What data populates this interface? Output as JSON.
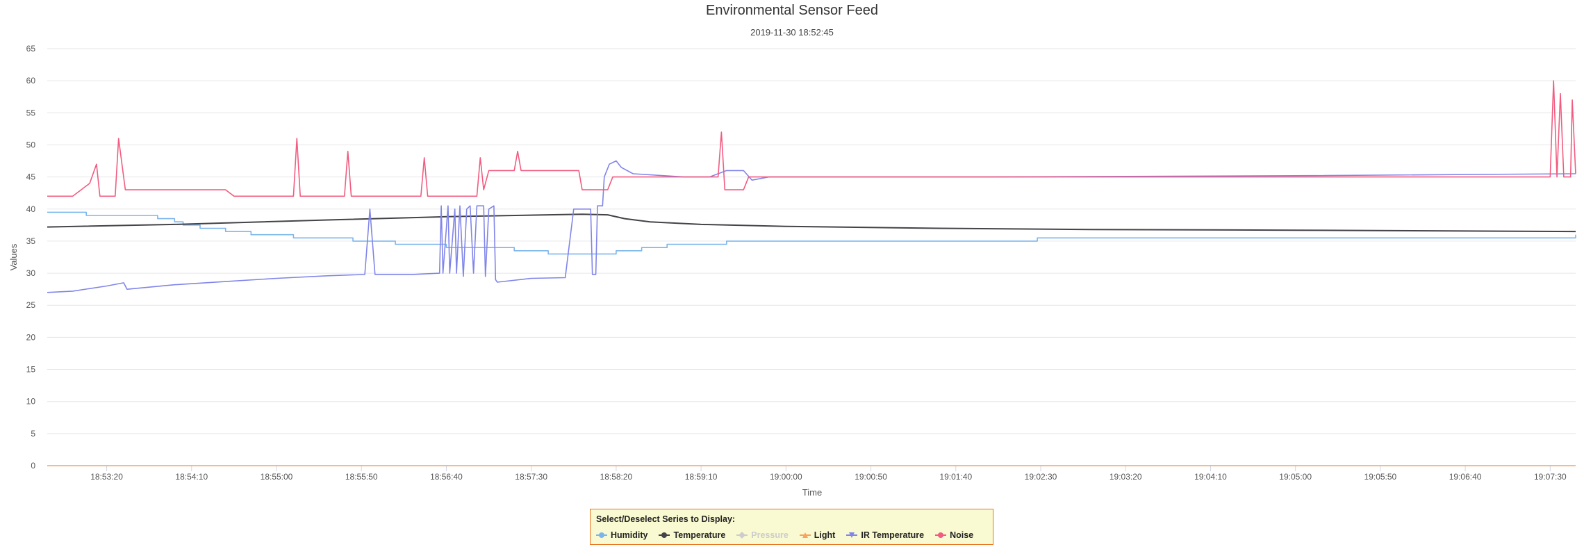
{
  "chart_data": {
    "type": "line",
    "title": "Environmental Sensor Feed",
    "subtitle": "2019-11-30 18:52:45",
    "xlabel": "Time",
    "ylabel": "Values",
    "ylim": [
      0,
      65
    ],
    "yticks": [
      0,
      5,
      10,
      15,
      20,
      25,
      30,
      35,
      40,
      45,
      50,
      55,
      60,
      65
    ],
    "xlim": [
      "18:52:45",
      "19:07:45"
    ],
    "xticks": [
      "18:53:20",
      "18:54:10",
      "18:55:00",
      "18:55:50",
      "18:56:40",
      "18:57:30",
      "18:58:20",
      "18:59:10",
      "19:00:00",
      "19:00:50",
      "19:01:40",
      "19:02:30",
      "19:03:20",
      "19:04:10",
      "19:05:00",
      "19:05:50",
      "19:06:40",
      "19:07:30"
    ],
    "grid": true,
    "legend_position": "bottom-center",
    "series": [
      {
        "name": "Humidity",
        "color": "#7cb5ec",
        "visible": true,
        "style": "step",
        "points": [
          [
            "18:52:45",
            39.5
          ],
          [
            "18:53:05",
            39.5
          ],
          [
            "18:53:08",
            39
          ],
          [
            "18:53:45",
            39
          ],
          [
            "18:53:50",
            38.5
          ],
          [
            "18:54:00",
            38
          ],
          [
            "18:54:05",
            37.5
          ],
          [
            "18:54:15",
            37
          ],
          [
            "18:54:30",
            36.5
          ],
          [
            "18:54:45",
            36
          ],
          [
            "18:55:10",
            35.5
          ],
          [
            "18:55:45",
            35
          ],
          [
            "18:56:10",
            34.5
          ],
          [
            "18:56:40",
            34
          ],
          [
            "18:57:20",
            33.5
          ],
          [
            "18:57:40",
            33
          ],
          [
            "18:58:20",
            33.5
          ],
          [
            "18:58:35",
            34
          ],
          [
            "18:58:50",
            34.5
          ],
          [
            "18:59:25",
            35
          ],
          [
            "19:02:25",
            35
          ],
          [
            "19:02:28",
            35.5
          ],
          [
            "19:07:40",
            35.5
          ],
          [
            "19:07:45",
            36
          ]
        ]
      },
      {
        "name": "Temperature",
        "color": "#434348",
        "visible": true,
        "style": "line",
        "points": [
          [
            "18:52:45",
            37.2
          ],
          [
            "18:54:00",
            37.6
          ],
          [
            "18:55:30",
            38.3
          ],
          [
            "18:56:40",
            38.8
          ],
          [
            "18:58:00",
            39.2
          ],
          [
            "18:58:15",
            39.1
          ],
          [
            "18:58:25",
            38.5
          ],
          [
            "18:58:40",
            38.0
          ],
          [
            "18:59:10",
            37.6
          ],
          [
            "19:00:00",
            37.3
          ],
          [
            "19:01:30",
            37.0
          ],
          [
            "19:03:00",
            36.8
          ],
          [
            "19:05:00",
            36.7
          ],
          [
            "19:06:30",
            36.6
          ],
          [
            "19:07:45",
            36.5
          ]
        ]
      },
      {
        "name": "Pressure",
        "color": "#90ed7d",
        "visible": false,
        "style": "line",
        "points": []
      },
      {
        "name": "Light",
        "color": "#f7a35c",
        "visible": true,
        "style": "line",
        "points": [
          [
            "18:52:45",
            0
          ],
          [
            "19:07:45",
            0
          ]
        ]
      },
      {
        "name": "IR Temperature",
        "color": "#8085e9",
        "visible": true,
        "style": "line",
        "points": [
          [
            "18:52:45",
            27
          ],
          [
            "18:53:00",
            27.2
          ],
          [
            "18:53:20",
            28
          ],
          [
            "18:53:30",
            28.5
          ],
          [
            "18:53:32",
            27.5
          ],
          [
            "18:54:00",
            28.2
          ],
          [
            "18:54:30",
            28.7
          ],
          [
            "18:55:00",
            29.2
          ],
          [
            "18:55:30",
            29.6
          ],
          [
            "18:55:52",
            29.8
          ],
          [
            "18:55:55",
            40
          ],
          [
            "18:55:58",
            29.8
          ],
          [
            "18:56:20",
            29.8
          ],
          [
            "18:56:36",
            30
          ],
          [
            "18:56:37",
            40.5
          ],
          [
            "18:56:38",
            30
          ],
          [
            "18:56:41",
            40.5
          ],
          [
            "18:56:42",
            30
          ],
          [
            "18:56:45",
            40
          ],
          [
            "18:56:46",
            30
          ],
          [
            "18:56:48",
            40.5
          ],
          [
            "18:56:50",
            29.5
          ],
          [
            "18:56:52",
            40
          ],
          [
            "18:56:54",
            40.5
          ],
          [
            "18:56:56",
            30
          ],
          [
            "18:56:58",
            40.5
          ],
          [
            "18:57:02",
            40.5
          ],
          [
            "18:57:03",
            29.5
          ],
          [
            "18:57:05",
            40
          ],
          [
            "18:57:08",
            40.5
          ],
          [
            "18:57:09",
            29
          ],
          [
            "18:57:10",
            28.6
          ],
          [
            "18:57:30",
            29.2
          ],
          [
            "18:57:50",
            29.3
          ],
          [
            "18:57:55",
            40
          ],
          [
            "18:58:05",
            40
          ],
          [
            "18:58:06",
            29.8
          ],
          [
            "18:58:08",
            29.8
          ],
          [
            "18:58:09",
            40.5
          ],
          [
            "18:58:12",
            40.5
          ],
          [
            "18:58:13",
            45
          ],
          [
            "18:58:16",
            47
          ],
          [
            "18:58:20",
            47.5
          ],
          [
            "18:58:23",
            46.5
          ],
          [
            "18:58:30",
            45.5
          ],
          [
            "18:59:00",
            45
          ],
          [
            "18:59:15",
            45
          ],
          [
            "18:59:25",
            46
          ],
          [
            "18:59:35",
            46
          ],
          [
            "18:59:40",
            44.5
          ],
          [
            "18:59:50",
            45
          ],
          [
            "19:02:00",
            45
          ],
          [
            "19:05:00",
            45.2
          ],
          [
            "19:07:45",
            45.5
          ]
        ]
      },
      {
        "name": "Noise",
        "color": "#f15c80",
        "visible": true,
        "style": "line",
        "points": [
          [
            "18:52:45",
            42
          ],
          [
            "18:53:00",
            42
          ],
          [
            "18:53:10",
            44
          ],
          [
            "18:53:14",
            47
          ],
          [
            "18:53:16",
            42
          ],
          [
            "18:53:25",
            42
          ],
          [
            "18:53:27",
            51
          ],
          [
            "18:53:31",
            43
          ],
          [
            "18:54:30",
            43
          ],
          [
            "18:54:35",
            42
          ],
          [
            "18:55:10",
            42
          ],
          [
            "18:55:12",
            51
          ],
          [
            "18:55:14",
            42
          ],
          [
            "18:55:40",
            42
          ],
          [
            "18:55:42",
            49
          ],
          [
            "18:55:44",
            42
          ],
          [
            "18:56:25",
            42
          ],
          [
            "18:56:27",
            48
          ],
          [
            "18:56:29",
            42
          ],
          [
            "18:56:58",
            42
          ],
          [
            "18:57:00",
            48
          ],
          [
            "18:57:02",
            43
          ],
          [
            "18:57:05",
            46
          ],
          [
            "18:57:20",
            46
          ],
          [
            "18:57:22",
            49
          ],
          [
            "18:57:24",
            46
          ],
          [
            "18:57:58",
            46
          ],
          [
            "18:58:00",
            43
          ],
          [
            "18:58:15",
            43
          ],
          [
            "18:58:18",
            45
          ],
          [
            "18:58:40",
            45
          ],
          [
            "18:59:20",
            45
          ],
          [
            "18:59:22",
            52
          ],
          [
            "18:59:24",
            43
          ],
          [
            "18:59:35",
            43
          ],
          [
            "18:59:38",
            45
          ],
          [
            "19:07:30",
            45
          ],
          [
            "19:07:32",
            60
          ],
          [
            "19:07:34",
            45
          ],
          [
            "19:07:36",
            58
          ],
          [
            "19:07:38",
            45
          ],
          [
            "19:07:42",
            45
          ],
          [
            "19:07:43",
            57
          ],
          [
            "19:07:45",
            45.5
          ]
        ]
      }
    ]
  },
  "legend": {
    "title": "Select/Deselect Series to Display:"
  }
}
